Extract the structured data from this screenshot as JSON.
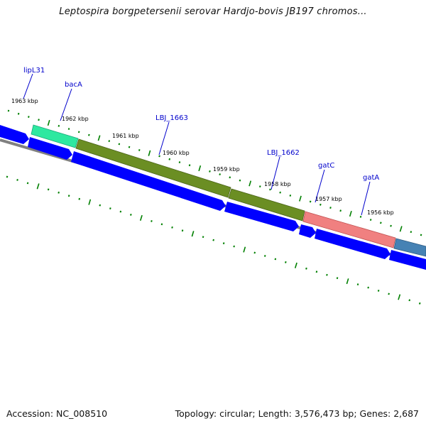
{
  "title": "Leptospira borgpetersenii serovar Hardjo-bovis JB197 chromos...",
  "footer": {
    "accession": "Accession: NC_008510",
    "summary": "Topology: circular; Length: 3,576,473 bp; Genes: 2,687"
  },
  "colors": {
    "forward_cds": "#0000ff",
    "backbone": "#808080",
    "tick": "#008000",
    "gene_label": "#0000cc",
    "lipL31": "#2ee8a0",
    "bacA": "#6b8e23",
    "LBJ_1663": "#6b8e23",
    "LBJ_1662": "#6b8e23",
    "gatC": "#f08080",
    "gatA": "#4682b4"
  },
  "scale_labels": [
    "1963 kbp",
    "1962 kbp",
    "1961 kbp",
    "1960 kbp",
    "1959 kbp",
    "1958 kbp",
    "1957 kbp",
    "1956 kbp"
  ],
  "gene_labels": [
    "lipL31",
    "bacA",
    "LBJ_1663",
    "LBJ_1662",
    "gatC",
    "gatA"
  ]
}
